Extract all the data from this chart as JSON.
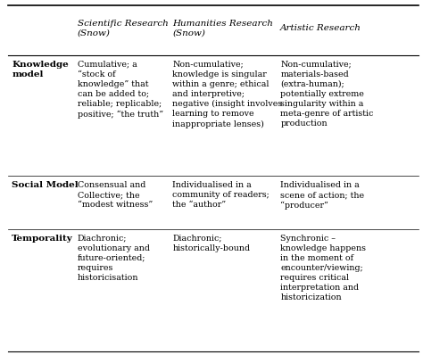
{
  "col_headers": [
    "",
    "Scientific Research\n(Snow)",
    "Humanities Research\n(Snow)",
    "Artistic Research"
  ],
  "cell_data": [
    [
      "Knowledge\nmodel",
      "Cumulative; a\n“stock of\nknowledge” that\ncan be added to;\nreliable; replicable;\npositive; “the truth”",
      "Non-cumulative;\nknowledge is singular\nwithin a genre; ethical\nand interpretive;\nnegative (insight involves\nlearning to remove\ninappropriate lenses)",
      "Non-cumulative;\nmaterials-based\n(extra-human);\npotentially extreme\nsingularity within a\nmeta-genre of artistic\nproduction"
    ],
    [
      "Social Model",
      "Consensual and\nCollective; the\n“modest witness”",
      "Individualised in a\ncommunity of readers;\nthe “author”",
      "Individualised in a\nscene of action; the\n“producer”"
    ],
    [
      "Temporality",
      "Diachronic;\nevolutionary and\nfuture-oriented;\nrequires\nhistoricisation",
      "Diachronic;\nhistorically-bound",
      "Synchronic –\nknowledge happens\nin the moment of\nencounter/viewing;\nrequires critical\ninterpretation and\nhistoricization"
    ]
  ],
  "background_color": "#ffffff",
  "text_color": "#000000",
  "font_size": 6.8,
  "header_font_size": 7.5,
  "label_font_size": 7.5,
  "figsize": [
    4.74,
    3.98
  ],
  "dpi": 100
}
